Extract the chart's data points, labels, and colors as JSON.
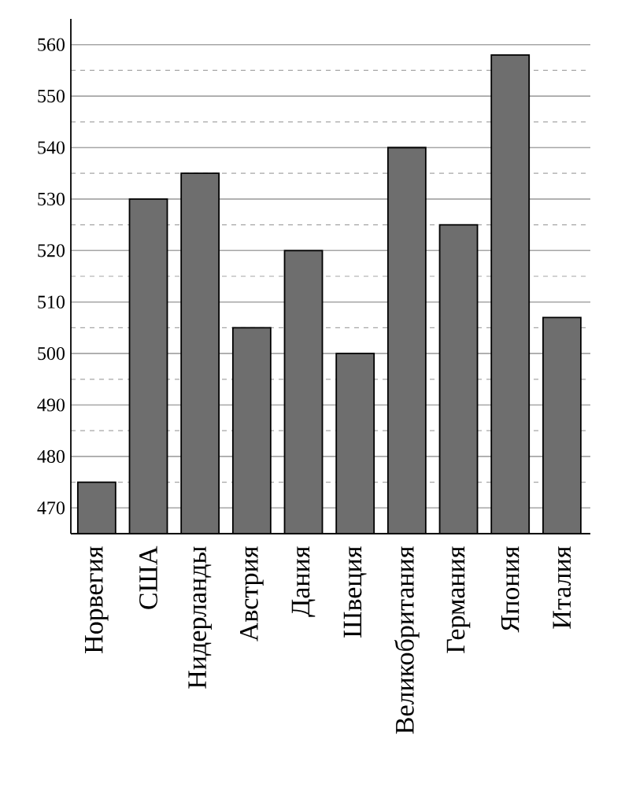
{
  "chart_data": {
    "type": "bar",
    "categories": [
      "Норвегия",
      "США",
      "Нидерланды",
      "Австрия",
      "Дания",
      "Швеция",
      "Великобритания",
      "Германия",
      "Япония",
      "Италия"
    ],
    "values": [
      475,
      530,
      535,
      505,
      520,
      500,
      540,
      525,
      558,
      507
    ],
    "color": "#6e6e6e",
    "ylim": [
      465,
      565
    ],
    "yticks": [
      470,
      480,
      490,
      500,
      510,
      520,
      530,
      540,
      550,
      560
    ],
    "grid": "y"
  }
}
